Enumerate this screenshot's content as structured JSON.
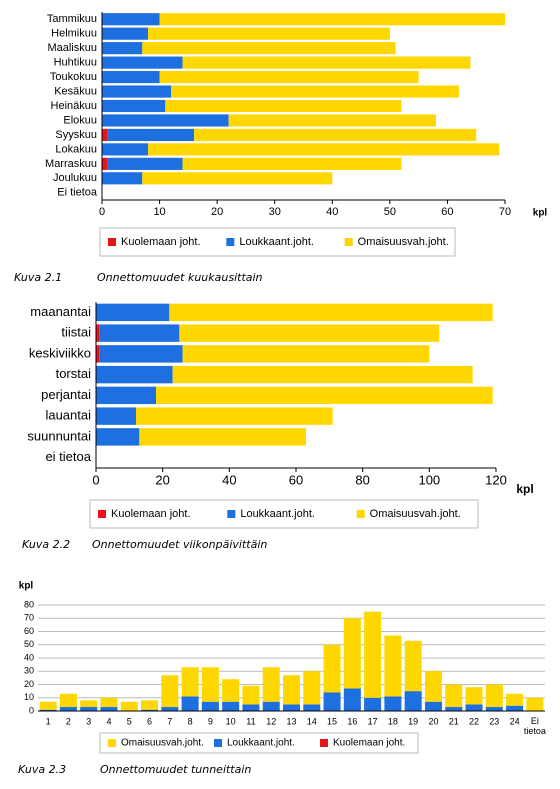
{
  "chart_data": [
    {
      "type": "hbar",
      "figure_label": "Kuva 2.1",
      "caption": "Onnettomuudet kuukausittain",
      "x_label": "kpl",
      "categories": [
        "Tammikuu",
        "Helmikuu",
        "Maaliskuu",
        "Huhtikuu",
        "Toukokuu",
        "Kesäkuu",
        "Heinäkuu",
        "Elokuu",
        "Syyskuu",
        "Lokakuu",
        "Marraskuu",
        "Joulukuu",
        "Ei tietoa"
      ],
      "series": [
        {
          "name": "Kuolemaan joht.",
          "color": "#e8141c",
          "values": [
            0,
            0,
            0,
            0,
            0,
            0,
            0,
            0,
            1,
            0,
            1,
            0,
            0
          ]
        },
        {
          "name": "Loukkaant.joht.",
          "color": "#1e6fe0",
          "values": [
            10,
            8,
            7,
            14,
            10,
            12,
            11,
            22,
            15,
            8,
            13,
            7,
            0
          ]
        },
        {
          "name": "Omaisuusvah.joht.",
          "color": "#ffd700",
          "values": [
            60,
            42,
            44,
            50,
            45,
            50,
            41,
            36,
            49,
            61,
            38,
            33,
            0
          ]
        }
      ],
      "xlim": [
        0,
        70
      ],
      "xticks": [
        0,
        10,
        20,
        30,
        40,
        50,
        60,
        70
      ],
      "grid": false
    },
    {
      "type": "hbar",
      "figure_label": "Kuva 2.2",
      "caption": "Onnettomuudet viikonpäivittäin",
      "x_label": "kpl",
      "categories": [
        "maanantai",
        "tiistai",
        "keskiviikko",
        "torstai",
        "perjantai",
        "lauantai",
        "suunnuntai",
        "ei tietoa"
      ],
      "series": [
        {
          "name": "Kuolemaan joht.",
          "color": "#e8141c",
          "values": [
            0,
            1,
            1,
            0,
            0,
            0,
            0,
            0
          ]
        },
        {
          "name": "Loukkaant.joht.",
          "color": "#1e6fe0",
          "values": [
            22,
            24,
            25,
            23,
            18,
            12,
            13,
            0
          ]
        },
        {
          "name": "Omaisuusvah.joht.",
          "color": "#ffd700",
          "values": [
            97,
            78,
            74,
            90,
            101,
            59,
            50,
            0
          ]
        }
      ],
      "xlim": [
        0,
        120
      ],
      "xticks": [
        0,
        20,
        40,
        60,
        80,
        100,
        120
      ],
      "grid": false
    },
    {
      "type": "column",
      "figure_label": "Kuva 2.3",
      "caption": "Onnettomuudet tunneittain",
      "y_label": "kpl",
      "categories": [
        "1",
        "2",
        "3",
        "4",
        "5",
        "6",
        "7",
        "8",
        "9",
        "10",
        "11",
        "12",
        "13",
        "14",
        "15",
        "16",
        "17",
        "18",
        "19",
        "20",
        "21",
        "22",
        "23",
        "24",
        "Ei tietoa"
      ],
      "series": [
        {
          "name": "Omaisuusvah.joht.",
          "color": "#ffd700",
          "values": [
            6,
            10,
            5,
            7,
            7,
            7,
            24,
            22,
            26,
            17,
            14,
            26,
            22,
            25,
            36,
            53,
            65,
            46,
            38,
            23,
            17,
            13,
            17,
            9,
            10
          ]
        },
        {
          "name": "Loukkaant.joht.",
          "color": "#1e6fe0",
          "values": [
            1,
            3,
            3,
            3,
            0,
            1,
            3,
            11,
            7,
            7,
            5,
            7,
            5,
            5,
            14,
            17,
            10,
            11,
            15,
            7,
            3,
            5,
            3,
            4,
            0
          ]
        },
        {
          "name": "Kuolemaan joht.",
          "color": "#e8141c",
          "values": [
            0,
            0,
            0,
            0,
            0,
            0,
            0,
            0,
            0,
            0,
            0,
            0,
            0,
            0,
            0,
            0,
            0,
            0,
            0,
            0,
            0,
            0,
            0,
            0,
            0
          ]
        }
      ],
      "ylim": [
        0,
        80
      ],
      "yticks": [
        0,
        10,
        20,
        30,
        40,
        50,
        60,
        70,
        80
      ],
      "grid": true
    }
  ]
}
